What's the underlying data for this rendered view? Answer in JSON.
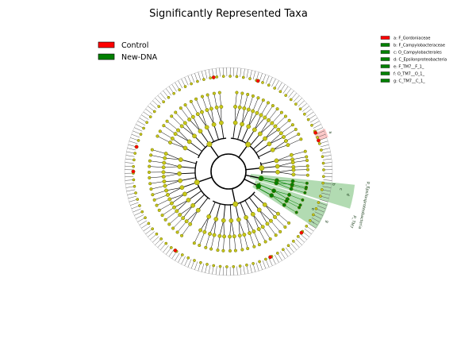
{
  "title": "Significantly Represented Taxa",
  "colors": {
    "control": "#ff0000",
    "newdna": "#008000",
    "node_default": "#c8c81a",
    "node_stroke": "#6b6b00",
    "branch": "#000000",
    "highlight_green": "#3fa63f",
    "highlight_red": "#ffb0b0"
  },
  "legend": {
    "groups": [
      {
        "label": "Control",
        "color": "#ff0000"
      },
      {
        "label": "New-DNA",
        "color": "#008000"
      }
    ],
    "taxa": [
      {
        "label": "a: F_Gordoniaceae",
        "color": "#ff0000"
      },
      {
        "label": "b: F_Campylobacteraceae",
        "color": "#008000"
      },
      {
        "label": "c: O_Campylobacterales",
        "color": "#008000"
      },
      {
        "label": "d: C_Epsilonproteobacteria",
        "color": "#008000"
      },
      {
        "label": "e: F_TM7__F_1_",
        "color": "#008000"
      },
      {
        "label": "f: O_TM7__O_1_",
        "color": "#008000"
      },
      {
        "label": "g: C_TM7__C_1_",
        "color": "#008000"
      }
    ]
  },
  "cladogram": {
    "clade_labels": [
      {
        "id": "d",
        "letter": "d",
        "name": "p_Epsilonproteobacteria",
        "color": "#008000"
      },
      {
        "id": "g",
        "letter": "g",
        "name": "p_TM7",
        "color": "#008000"
      },
      {
        "id": "a",
        "letter": "a",
        "name": "",
        "color": "#ff0000"
      }
    ],
    "inner_letters": [
      "c",
      "b",
      "f",
      "e"
    ]
  }
}
